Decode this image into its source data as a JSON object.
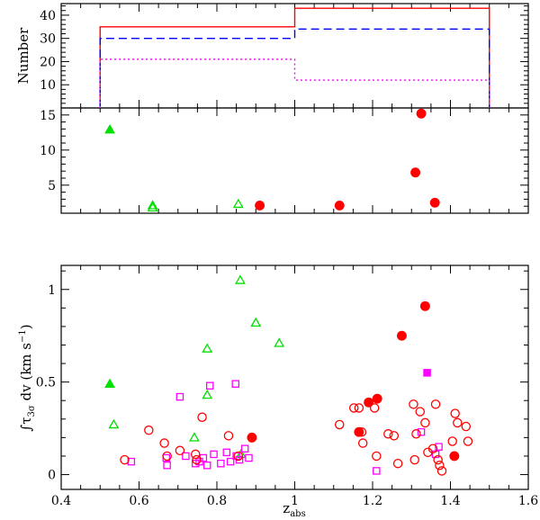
{
  "chart_data": [
    {
      "type": "histogram",
      "panel": "top",
      "ylabel": "Number",
      "xlim": [
        0.4,
        1.6
      ],
      "ylim": [
        0,
        45
      ],
      "yticks": [
        10,
        20,
        30,
        40
      ],
      "bin_edges": [
        0.5,
        1.0,
        1.5
      ],
      "series": [
        {
          "name": "total",
          "color": "#ff0000",
          "style": "solid",
          "values": [
            35,
            43
          ]
        },
        {
          "name": "dashed",
          "color": "#0000ff",
          "style": "dashed",
          "values": [
            30,
            34
          ]
        },
        {
          "name": "dotted",
          "color": "#ff00ff",
          "style": "dotted",
          "values": [
            21,
            12
          ]
        }
      ]
    },
    {
      "type": "scatter",
      "panel": "middle",
      "xlim": [
        0.4,
        1.6
      ],
      "ylim": [
        1.0,
        16.0
      ],
      "yticks": [
        5,
        10,
        15
      ],
      "series": [
        {
          "name": "green filled triangles",
          "marker": "triangle",
          "filled": true,
          "color": "#00e000",
          "x": [
            0.525
          ],
          "y": [
            12.9
          ]
        },
        {
          "name": "green open triangles",
          "marker": "triangle",
          "filled": false,
          "color": "#00e000",
          "x": [
            0.635,
            0.635,
            0.855
          ],
          "y": [
            2.1,
            1.8,
            2.3
          ]
        },
        {
          "name": "red filled circles",
          "marker": "circle",
          "filled": true,
          "color": "#ff0000",
          "x": [
            0.91,
            1.115,
            1.325,
            1.31,
            1.36
          ],
          "y": [
            2.1,
            2.1,
            15.2,
            6.8,
            2.5
          ]
        }
      ]
    },
    {
      "type": "scatter",
      "panel": "bottom",
      "xlabel_main": "z",
      "xlabel_sub": "abs",
      "ylabel_main": "∫τ",
      "ylabel_sub": "3σ",
      "ylabel_rest": " dv (km s",
      "ylabel_sup": "−1",
      "ylabel_close": ")",
      "xlim": [
        0.4,
        1.6
      ],
      "ylim": [
        -0.08,
        1.13
      ],
      "xticks": [
        0.4,
        0.6,
        0.8,
        1.0,
        1.2,
        1.4,
        1.6
      ],
      "xtick_labels": [
        "0.4",
        "0.6",
        "0.8",
        "1",
        "1.2",
        "1.4",
        "1.6"
      ],
      "yticks": [
        0,
        0.5,
        1
      ],
      "ytick_labels": [
        "0",
        "0.5",
        "1"
      ],
      "series": [
        {
          "name": "green filled triangles",
          "marker": "triangle",
          "filled": true,
          "color": "#00e000",
          "x": [
            0.525
          ],
          "y": [
            0.49
          ]
        },
        {
          "name": "green open triangles",
          "marker": "triangle",
          "filled": false,
          "color": "#00e000",
          "x": [
            0.535,
            0.742,
            0.775,
            0.775,
            0.86,
            0.9,
            0.96,
            0.862
          ],
          "y": [
            0.27,
            0.2,
            0.68,
            0.43,
            1.05,
            0.82,
            0.71,
            0.11
          ]
        },
        {
          "name": "magenta open squares",
          "marker": "square",
          "filled": false,
          "color": "#ff00ff",
          "x": [
            0.58,
            0.67,
            0.672,
            0.705,
            0.72,
            0.745,
            0.755,
            0.765,
            0.775,
            0.782,
            0.792,
            0.81,
            0.825,
            0.835,
            0.848,
            0.85,
            0.858,
            0.872,
            0.882,
            1.21,
            1.325,
            1.362,
            1.37
          ],
          "y": [
            0.07,
            0.09,
            0.05,
            0.42,
            0.1,
            0.06,
            0.07,
            0.09,
            0.05,
            0.48,
            0.11,
            0.06,
            0.12,
            0.07,
            0.49,
            0.1,
            0.08,
            0.14,
            0.09,
            0.02,
            0.23,
            0.11,
            0.15
          ]
        },
        {
          "name": "magenta filled squares",
          "marker": "square",
          "filled": true,
          "color": "#ff00ff",
          "x": [
            1.34
          ],
          "y": [
            0.55
          ]
        },
        {
          "name": "red open circles",
          "marker": "circle",
          "filled": false,
          "color": "#ff0000",
          "x": [
            0.563,
            0.625,
            0.665,
            0.672,
            0.705,
            0.745,
            0.748,
            0.762,
            0.83,
            0.855,
            1.115,
            1.152,
            1.165,
            1.172,
            1.175,
            1.205,
            1.21,
            1.24,
            1.255,
            1.265,
            1.305,
            1.308,
            1.312,
            1.322,
            1.335,
            1.342,
            1.355,
            1.362,
            1.368,
            1.372,
            1.378,
            1.405,
            1.412,
            1.418,
            1.44,
            1.445
          ],
          "y": [
            0.08,
            0.24,
            0.17,
            0.1,
            0.13,
            0.11,
            0.08,
            0.31,
            0.21,
            0.1,
            0.27,
            0.36,
            0.36,
            0.23,
            0.17,
            0.36,
            0.1,
            0.22,
            0.21,
            0.06,
            0.38,
            0.08,
            0.22,
            0.34,
            0.28,
            0.12,
            0.14,
            0.38,
            0.08,
            0.05,
            0.02,
            0.18,
            0.33,
            0.28,
            0.26,
            0.18
          ]
        },
        {
          "name": "red filled circles",
          "marker": "circle",
          "filled": true,
          "color": "#ff0000",
          "x": [
            0.89,
            1.165,
            1.19,
            1.212,
            1.275,
            1.335,
            1.41
          ],
          "y": [
            0.2,
            0.23,
            0.39,
            0.41,
            0.75,
            0.91,
            0.1
          ]
        }
      ]
    }
  ]
}
